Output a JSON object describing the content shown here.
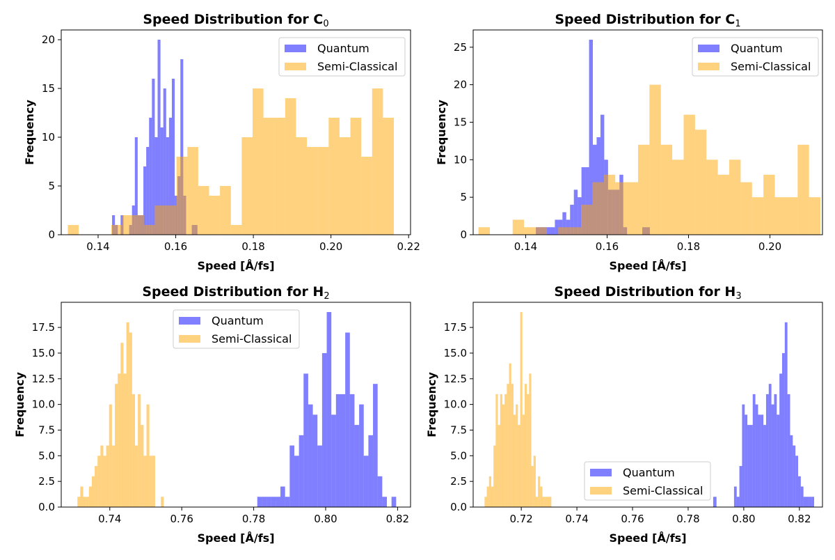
{
  "colors": {
    "quantum": "#0000ff",
    "semi": "#ffa500",
    "bar_alpha": 0.5
  },
  "chart_data": [
    {
      "type": "histogram",
      "title": "Speed Distribution for C",
      "title_subscript": "0",
      "xlabel": "Speed [Å/fs]",
      "ylabel": "Frequency",
      "xlim": [
        0.1305,
        0.2205
      ],
      "ylim": [
        0,
        21
      ],
      "xticks": [
        0.14,
        0.16,
        0.18,
        0.2,
        0.22
      ],
      "xtick_labels": [
        "0.14",
        "0.16",
        "0.18",
        "0.20",
        "0.22"
      ],
      "yticks": [
        0,
        5,
        10,
        15,
        20
      ],
      "ytick_labels": [
        "0",
        "5",
        "10",
        "15",
        "20"
      ],
      "legend_position": "upper right",
      "series": [
        {
          "name": "Quantum",
          "bins": {
            "start": 0.1436,
            "end": 0.1656,
            "count": 30
          },
          "counts": [
            2,
            1,
            0,
            2,
            0,
            0,
            1,
            3,
            10,
            2,
            2,
            7,
            9,
            12,
            16,
            10,
            20,
            11,
            15,
            10,
            12,
            16,
            4,
            6,
            18,
            4,
            0,
            0,
            1,
            1
          ]
        },
        {
          "name": "Semi-Classical",
          "bins": {
            "start": 0.1322,
            "end": 0.2162,
            "count": 30
          },
          "counts": [
            1,
            0,
            0,
            0,
            1,
            2,
            2,
            1,
            3,
            3,
            8,
            9,
            5,
            4,
            5,
            1,
            10,
            15,
            12,
            12,
            14,
            10,
            9,
            9,
            12,
            10,
            12,
            8,
            15,
            12
          ]
        }
      ]
    },
    {
      "type": "histogram",
      "title": "Speed Distribution for C",
      "title_subscript": "1",
      "xlabel": "Speed [Å/fs]",
      "ylabel": "Frequency",
      "xlim": [
        0.1271,
        0.2129
      ],
      "ylim": [
        0,
        27.3
      ],
      "xticks": [
        0.14,
        0.16,
        0.18,
        0.2
      ],
      "xtick_labels": [
        "0.14",
        "0.16",
        "0.18",
        "0.20"
      ],
      "yticks": [
        0,
        5,
        10,
        15,
        20,
        25
      ],
      "ytick_labels": [
        "0",
        "5",
        "10",
        "15",
        "20",
        "25"
      ],
      "legend_position": "upper right",
      "series": [
        {
          "name": "Quantum",
          "bins": {
            "start": 0.1425,
            "end": 0.1705,
            "count": 30
          },
          "counts": [
            1,
            1,
            1,
            1,
            1,
            2,
            2,
            3,
            2,
            4,
            6,
            5,
            9,
            9,
            26,
            12,
            13,
            16,
            10,
            6,
            6,
            6,
            8,
            1,
            0,
            0,
            0,
            0,
            1,
            1
          ]
        },
        {
          "name": "Semi-Classical",
          "bins": {
            "start": 0.1284,
            "end": 0.2124,
            "count": 30
          },
          "counts": [
            1,
            0,
            0,
            2,
            1,
            1,
            0,
            1,
            1,
            4,
            7,
            8,
            7,
            7,
            12,
            20,
            12,
            10,
            16,
            14,
            10,
            8,
            10,
            7,
            5,
            8,
            5,
            5,
            12,
            5
          ]
        }
      ]
    },
    {
      "type": "histogram",
      "title": "Speed Distribution for H",
      "title_subscript": "2",
      "xlabel": "Speed [Å/fs]",
      "ylabel": "Frequency",
      "xlim": [
        0.7265,
        0.8236
      ],
      "ylim": [
        0,
        19.95
      ],
      "xticks": [
        0.74,
        0.76,
        0.78,
        0.8,
        0.82
      ],
      "xtick_labels": [
        "0.74",
        "0.76",
        "0.78",
        "0.80",
        "0.82"
      ],
      "yticks": [
        0,
        2.5,
        5.0,
        7.5,
        10.0,
        12.5,
        15.0,
        17.5
      ],
      "ytick_labels": [
        "0.0",
        "2.5",
        "5.0",
        "7.5",
        "10.0",
        "12.5",
        "15.0",
        "17.5"
      ],
      "legend_position": "upper center",
      "series": [
        {
          "name": "Quantum",
          "bins": {
            "start": 0.781,
            "end": 0.8196,
            "count": 30
          },
          "counts": [
            1,
            1,
            1,
            1,
            1,
            2,
            1,
            6,
            5,
            7,
            13,
            10,
            9,
            6,
            15,
            19,
            9,
            11,
            11,
            17,
            11,
            8,
            10,
            5,
            7,
            12,
            3,
            1,
            0,
            1
          ]
        },
        {
          "name": "Semi-Classical",
          "bins": {
            "start": 0.731,
            "end": 0.755,
            "count": 30
          },
          "counts": [
            1,
            2,
            1,
            1,
            2,
            3,
            4,
            5,
            6,
            5,
            6,
            10,
            6,
            12,
            13,
            16,
            13,
            18,
            17,
            11,
            6,
            11,
            8,
            5,
            10,
            5,
            5,
            0,
            0,
            1
          ]
        }
      ]
    },
    {
      "type": "histogram",
      "title": "Speed Distribution for H",
      "title_subscript": "3",
      "xlabel": "Speed [Å/fs]",
      "ylabel": "Frequency",
      "xlim": [
        0.7027,
        0.8283
      ],
      "ylim": [
        0,
        19.95
      ],
      "xticks": [
        0.72,
        0.74,
        0.76,
        0.78,
        0.8,
        0.82
      ],
      "xtick_labels": [
        "0.72",
        "0.74",
        "0.76",
        "0.78",
        "0.80",
        "0.82"
      ],
      "yticks": [
        0,
        2.5,
        5.0,
        7.5,
        10.0,
        12.5,
        15.0,
        17.5
      ],
      "ytick_labels": [
        "0.0",
        "2.5",
        "5.0",
        "7.5",
        "10.0",
        "12.5",
        "15.0",
        "17.5"
      ],
      "legend_position": "lower center",
      "series": [
        {
          "name": "Quantum",
          "bins": {
            "start": 0.7965,
            "end": 0.8253,
            "count": 30
          },
          "counts": [
            2,
            1,
            4,
            10,
            9,
            8,
            8,
            11,
            10,
            9,
            9,
            8,
            11,
            12,
            10,
            11,
            9,
            13,
            15,
            18,
            11,
            7,
            6,
            5,
            3,
            2,
            1,
            1,
            1,
            1
          ]
        },
        {
          "name": "Semi-Classical",
          "bins": {
            "start": 0.7068,
            "end": 0.7308,
            "count": 30
          },
          "counts": [
            1,
            2,
            3,
            2,
            6,
            11,
            8,
            11,
            10,
            11,
            12,
            14,
            12,
            9,
            10,
            8,
            19,
            9,
            12,
            11,
            13,
            4,
            5,
            1,
            3,
            2,
            1,
            1,
            1,
            1
          ]
        }
      ],
      "extra_bars": [
        {
          "series": "Quantum",
          "x0": 0.789,
          "x1": 0.7902,
          "count": 1
        }
      ]
    }
  ]
}
